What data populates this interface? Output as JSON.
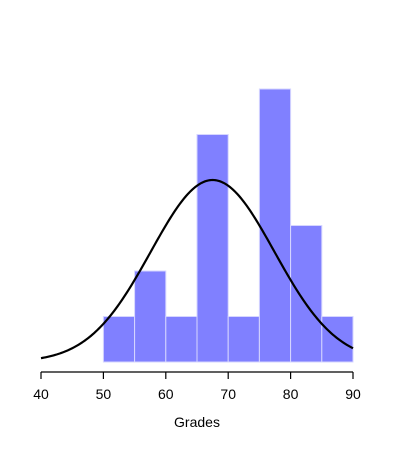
{
  "chart_data": {
    "type": "bar",
    "subtype": "histogram-with-normal-curve",
    "xlabel": "Grades",
    "ylabel": "",
    "title": "",
    "xlim": [
      40,
      90
    ],
    "ylim": [
      0,
      6
    ],
    "x_ticks": [
      40,
      50,
      60,
      70,
      80,
      90
    ],
    "bins": [
      {
        "start": 50,
        "end": 55,
        "count": 1
      },
      {
        "start": 55,
        "end": 60,
        "count": 2
      },
      {
        "start": 60,
        "end": 65,
        "count": 1
      },
      {
        "start": 65,
        "end": 70,
        "count": 5
      },
      {
        "start": 70,
        "end": 75,
        "count": 1
      },
      {
        "start": 75,
        "end": 80,
        "count": 6
      },
      {
        "start": 80,
        "end": 85,
        "count": 3
      },
      {
        "start": 85,
        "end": 90,
        "count": 1
      }
    ],
    "normal_curve": {
      "mean": 67.5,
      "sd": 9.9,
      "peak_count": 4
    },
    "bar_color": "#8080ff",
    "curve_color": "#000000",
    "grid": false
  }
}
